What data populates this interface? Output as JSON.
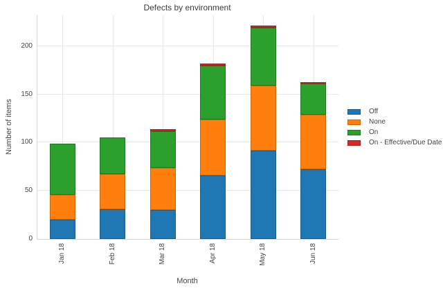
{
  "chart_data": {
    "type": "bar",
    "stacked": true,
    "title": "Defects by environment",
    "xlabel": "Month",
    "ylabel": "Number of items",
    "categories": [
      "Jan 18",
      "Feb 18",
      "Mar 18",
      "Apr 18",
      "May 18",
      "Jun 18"
    ],
    "series": [
      {
        "name": "Off",
        "color": "#1f77b4",
        "border": "#185d8d",
        "values": [
          20,
          31,
          30,
          66,
          92,
          72
        ]
      },
      {
        "name": "None",
        "color": "#ff7f0e",
        "border": "#c66708",
        "values": [
          26,
          36,
          44,
          58,
          67,
          57
        ]
      },
      {
        "name": "On",
        "color": "#2ca02c",
        "border": "#1f7a1f",
        "values": [
          53,
          38,
          38,
          56,
          60,
          32
        ]
      },
      {
        "name": "On - Effective/Due Date",
        "color": "#d62728",
        "border": "#a32021",
        "values": [
          0,
          0,
          1,
          1,
          2,
          1
        ]
      }
    ],
    "totals": [
      99,
      105,
      113,
      181,
      221,
      162
    ],
    "yticks": [
      0,
      50,
      100,
      150,
      200
    ],
    "ylim": [
      0,
      232
    ],
    "grid": true,
    "legend_position": "right",
    "x_tick_rotation_deg": 90
  },
  "style": {
    "gridline_color": "#e9e9e9",
    "axisline_color": "#d6d6d6",
    "text_color": "#444444",
    "title_color": "#3c3c3c",
    "background": "#ffffff"
  }
}
